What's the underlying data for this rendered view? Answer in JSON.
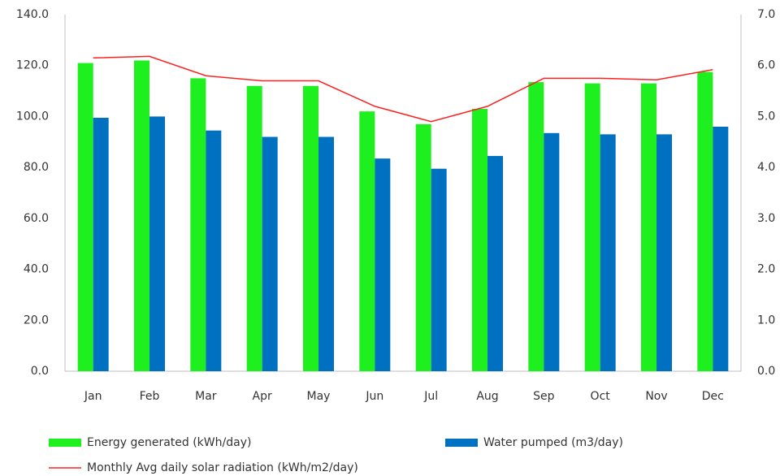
{
  "chart_data": {
    "type": "bar",
    "categories": [
      "Jan",
      "Feb",
      "Mar",
      "Apr",
      "May",
      "Jun",
      "Jul",
      "Aug",
      "Sep",
      "Oct",
      "Nov",
      "Dec"
    ],
    "series": [
      {
        "name": "Energy generated (kWh/day)",
        "color": "#1eef1e",
        "values": [
          121,
          122,
          115,
          112,
          112,
          102,
          97,
          103,
          113.5,
          113,
          113,
          117.5
        ]
      },
      {
        "name": "Water pumped (m3/day)",
        "color": "#0070c0",
        "values": [
          99.5,
          100,
          94.5,
          92,
          92,
          83.5,
          79.5,
          84.5,
          93.5,
          93,
          93,
          96
        ]
      },
      {
        "name": "Monthly Avg daily solar radiation (kWh/m2/day)",
        "color": "#ff2020",
        "type": "line",
        "axis": "y2",
        "values": [
          6.15,
          6.18,
          5.8,
          5.7,
          5.7,
          5.2,
          4.9,
          5.2,
          5.75,
          5.75,
          5.72,
          5.92
        ]
      }
    ],
    "ylim": [
      0,
      140
    ],
    "yticks": [
      {
        "value": 0,
        "label": "0.0"
      },
      {
        "value": 20,
        "label": "20.0"
      },
      {
        "value": 40,
        "label": "40.0"
      },
      {
        "value": 60,
        "label": "60.0"
      },
      {
        "value": 80,
        "label": "80.0"
      },
      {
        "value": 100,
        "label": "100.0"
      },
      {
        "value": 120,
        "label": "120.0"
      },
      {
        "value": 140,
        "label": "140.0"
      }
    ],
    "y2lim": [
      0,
      7
    ],
    "y2ticks": [
      {
        "value": 0,
        "label": "0.0"
      },
      {
        "value": 1,
        "label": "1.0"
      },
      {
        "value": 2,
        "label": "2.0"
      },
      {
        "value": 3,
        "label": "3.0"
      },
      {
        "value": 4,
        "label": "4.0"
      },
      {
        "value": 5,
        "label": "5.0"
      },
      {
        "value": 6,
        "label": "6.0"
      },
      {
        "value": 7,
        "label": "7.0"
      }
    ],
    "grid": false
  }
}
